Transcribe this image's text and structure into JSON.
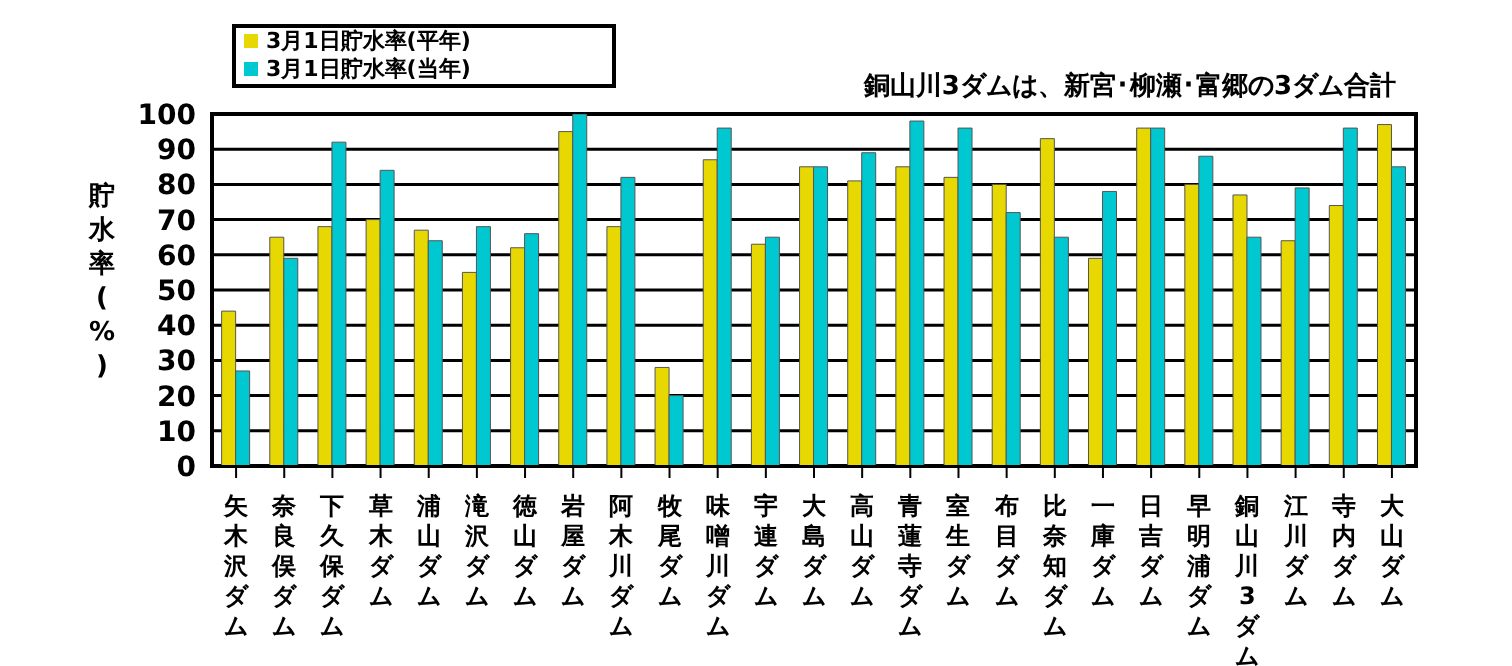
{
  "chart_data": {
    "type": "bar",
    "ylabel": "貯水率(%)",
    "annotations": [
      "銅山川3ダムは、新宮･柳瀬･富郷の3ダム合計"
    ],
    "categories": [
      "矢木沢ダム",
      "奈良俣ダム",
      "下久保ダム",
      "草木ダム",
      "浦山ダム",
      "滝沢ダム",
      "徳山ダム",
      "岩屋ダム",
      "阿木川ダム",
      "牧尾ダム",
      "味噌川ダム",
      "宇連ダム",
      "大島ダム",
      "高山ダム",
      "青蓮寺ダム",
      "室生ダム",
      "布目ダム",
      "比奈知ダム",
      "一庫ダム",
      "日吉ダム",
      "早明浦ダム",
      "銅山川3ダム",
      "江川ダム",
      "寺内ダム",
      "大山ダム"
    ],
    "series": [
      {
        "name": "3月1日貯水率(平年)",
        "color": "#e6d800",
        "values": [
          44,
          65,
          68,
          70,
          67,
          55,
          62,
          95,
          68,
          28,
          87,
          63,
          85,
          81,
          85,
          82,
          80,
          93,
          59,
          96,
          80,
          77,
          64,
          74,
          97
        ]
      },
      {
        "name": "3月1日貯水率(当年)",
        "color": "#00c8d0",
        "values": [
          27,
          59,
          92,
          84,
          64,
          68,
          66,
          100,
          82,
          20,
          96,
          65,
          85,
          89,
          98,
          96,
          72,
          65,
          78,
          96,
          88,
          65,
          79,
          96,
          85
        ]
      }
    ],
    "ylim": [
      0,
      100
    ],
    "yticks": [
      0,
      10,
      20,
      30,
      40,
      50,
      60,
      70,
      80,
      90,
      100
    ],
    "grid": "y",
    "legend": "top left"
  }
}
